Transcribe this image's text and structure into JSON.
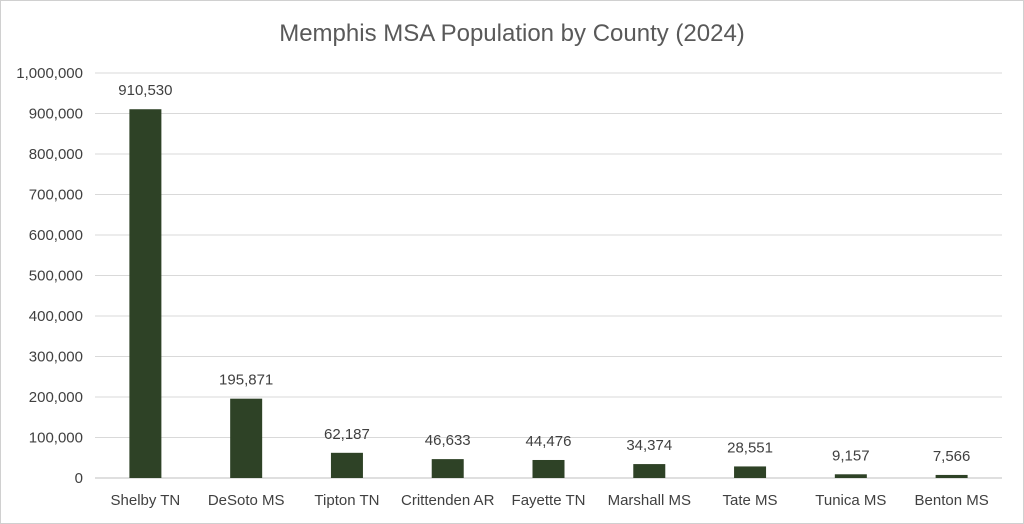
{
  "chart_data": {
    "type": "bar",
    "title": "Memphis MSA Population by County (2024)",
    "xlabel": "",
    "ylabel": "",
    "categories": [
      "Shelby TN",
      "DeSoto MS",
      "Tipton TN",
      "Crittenden AR",
      "Fayette TN",
      "Marshall MS",
      "Tate MS",
      "Tunica MS",
      "Benton MS"
    ],
    "values": [
      910530,
      195871,
      62187,
      46633,
      44476,
      34374,
      28551,
      9157,
      7566
    ],
    "value_labels": [
      "910,530",
      "195,871",
      "62,187",
      "46,633",
      "44,476",
      "34,374",
      "28,551",
      "9,157",
      "7,566"
    ],
    "ylim": [
      0,
      1000000
    ],
    "y_ticks": [
      0,
      100000,
      200000,
      300000,
      400000,
      500000,
      600000,
      700000,
      800000,
      900000,
      1000000
    ],
    "y_tick_labels": [
      "0",
      "100,000",
      "200,000",
      "300,000",
      "400,000",
      "500,000",
      "600,000",
      "700,000",
      "800,000",
      "900,000",
      "1,000,000"
    ],
    "grid": true,
    "legend": "none",
    "bar_color": "#2e4226"
  }
}
